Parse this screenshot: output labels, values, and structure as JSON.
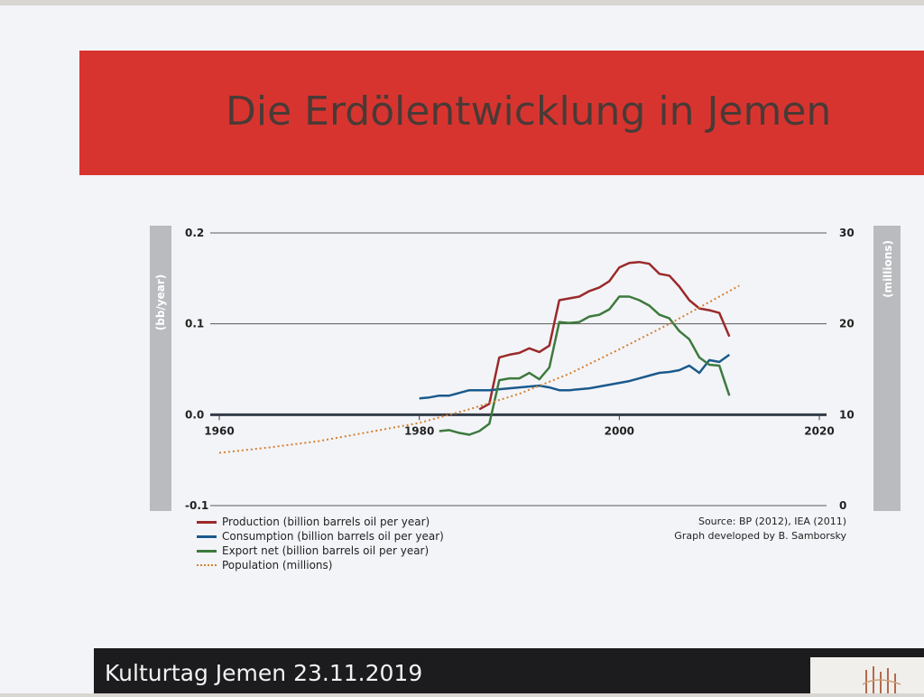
{
  "slide": {
    "title": "Die Erdölentwicklung in Jemen",
    "footer": "Kulturtag Jemen 23.11.2019"
  },
  "colors": {
    "title_band": "#d8342f",
    "production": "#9a2a2a",
    "consumption": "#1a5a8c",
    "export": "#3d7a3d",
    "population": "#d4812e"
  },
  "chart_data": {
    "type": "line",
    "ylabel_left": "(bb/year)",
    "ylabel_right": "(millions)",
    "x_ticks": [
      "1960",
      "1980",
      "2000",
      "2020"
    ],
    "y_left_ticks": [
      "-0.1",
      "0.0",
      "0.1",
      "0.2"
    ],
    "y_right_ticks": [
      "0",
      "10",
      "20",
      "30"
    ],
    "xlim": [
      1960,
      2020
    ],
    "ylim_left": [
      -0.1,
      0.2
    ],
    "ylim_right": [
      0,
      30
    ],
    "grid": "horizontal",
    "legend_position": "bottom-left",
    "series": [
      {
        "name": "Production (billion barrels oil per year)",
        "axis": "left",
        "x": [
          1986,
          1987,
          1988,
          1989,
          1990,
          1991,
          1992,
          1993,
          1994,
          1995,
          1996,
          1997,
          1998,
          1999,
          2000,
          2001,
          2002,
          2003,
          2004,
          2005,
          2006,
          2007,
          2008,
          2009,
          2010,
          2011
        ],
        "y": [
          0.006,
          0.012,
          0.063,
          0.066,
          0.068,
          0.073,
          0.069,
          0.076,
          0.126,
          0.128,
          0.13,
          0.136,
          0.14,
          0.147,
          0.162,
          0.167,
          0.168,
          0.166,
          0.155,
          0.153,
          0.141,
          0.126,
          0.117,
          0.115,
          0.112,
          0.086
        ]
      },
      {
        "name": "Consumption (billion barrels oil per year)",
        "axis": "left",
        "x": [
          1980,
          1981,
          1982,
          1983,
          1984,
          1985,
          1986,
          1987,
          1988,
          1989,
          1990,
          1991,
          1992,
          1993,
          1994,
          1995,
          1996,
          1997,
          1998,
          1999,
          2000,
          2001,
          2002,
          2003,
          2004,
          2005,
          2006,
          2007,
          2008,
          2009,
          2010,
          2011
        ],
        "y": [
          0.018,
          0.019,
          0.021,
          0.021,
          0.024,
          0.027,
          0.027,
          0.027,
          0.028,
          0.029,
          0.03,
          0.031,
          0.032,
          0.03,
          0.027,
          0.027,
          0.028,
          0.029,
          0.031,
          0.033,
          0.035,
          0.037,
          0.04,
          0.043,
          0.046,
          0.047,
          0.049,
          0.054,
          0.046,
          0.06,
          0.058,
          0.066
        ]
      },
      {
        "name": "Export net (billion barrels oil per year)",
        "axis": "left",
        "x": [
          1982,
          1983,
          1984,
          1985,
          1986,
          1987,
          1988,
          1989,
          1990,
          1991,
          1992,
          1993,
          1994,
          1995,
          1996,
          1997,
          1998,
          1999,
          2000,
          2001,
          2002,
          2003,
          2004,
          2005,
          2006,
          2007,
          2008,
          2009,
          2010,
          2011
        ],
        "y": [
          -0.018,
          -0.017,
          -0.02,
          -0.022,
          -0.018,
          -0.01,
          0.038,
          0.04,
          0.04,
          0.046,
          0.039,
          0.052,
          0.102,
          0.101,
          0.102,
          0.108,
          0.11,
          0.116,
          0.13,
          0.13,
          0.126,
          0.12,
          0.11,
          0.106,
          0.092,
          0.083,
          0.063,
          0.055,
          0.054,
          0.021
        ]
      },
      {
        "name": "Population (millions)",
        "axis": "right",
        "style": "dotted",
        "x": [
          1960,
          1965,
          1970,
          1975,
          1980,
          1985,
          1990,
          1995,
          2000,
          2005,
          2010,
          2012
        ],
        "y": [
          5.8,
          6.4,
          7.1,
          8.1,
          9.1,
          10.6,
          12.3,
          14.5,
          17.2,
          20.0,
          23.0,
          24.2
        ]
      }
    ]
  },
  "source": {
    "line1": "Source: BP (2012), IEA (2011)",
    "line2": "Graph developed by B. Samborsky"
  }
}
